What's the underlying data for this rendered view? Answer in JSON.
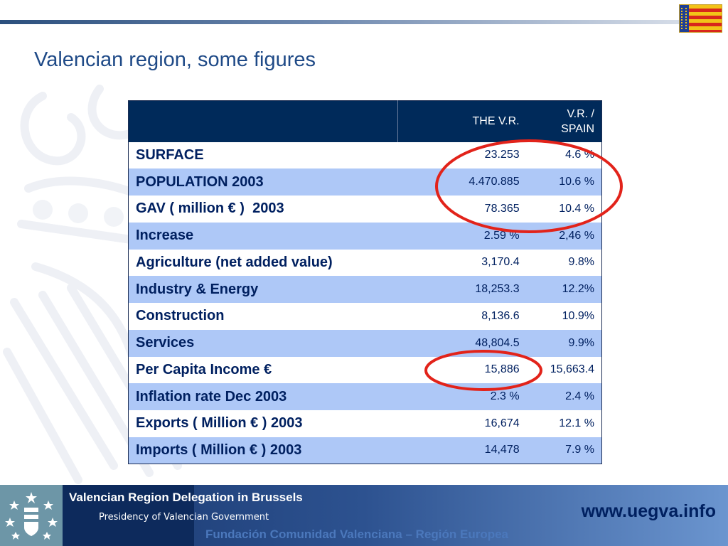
{
  "slide": {
    "title": "Valencian region, some figures"
  },
  "table": {
    "headers": {
      "label": "",
      "vr": "THE V.R.",
      "ratio_line1": "V.R. /",
      "ratio_line2": "SPAIN"
    },
    "rows": [
      {
        "label": "SURFACE",
        "vr": "23.253",
        "ratio": "4.6 %"
      },
      {
        "label": "POPULATION 2003",
        "vr": "4.470.885",
        "ratio": "10.6 %"
      },
      {
        "label": "GAV ( million € )  2003",
        "vr": "78.365",
        "ratio": "10.4 %"
      },
      {
        "label": "Increase",
        "vr": "2.59 %",
        "ratio": "2,46 %"
      },
      {
        "label": "Agriculture (net added value)",
        "vr": "3,170.4",
        "ratio": "9.8%"
      },
      {
        "label": "Industry & Energy",
        "vr": "18,253.3",
        "ratio": "12.2%"
      },
      {
        "label": "Construction",
        "vr": "8,136.6",
        "ratio": "10.9%"
      },
      {
        "label": "Services",
        "vr": "48,804.5",
        "ratio": "9.9%"
      },
      {
        "label": "Per Capita Income €",
        "vr": "15,886",
        "ratio": "15,663.4"
      },
      {
        "label": "Inflation rate Dec 2003",
        "vr": "2.3 %",
        "ratio": "2.4 %"
      },
      {
        "label": "Exports ( Million € ) 2003",
        "vr": "16,674",
        "ratio": "12.1 %"
      },
      {
        "label": "Imports ( Million € ) 2003",
        "vr": "14,478",
        "ratio": "7.9 %"
      }
    ]
  },
  "footer": {
    "heading": "Valencian Region Delegation in Brussels",
    "subheading": "Presidency of Valencian Government",
    "url": "www.uegva.info",
    "foundation": "Fundación Comunidad Valenciana – Región Europea"
  },
  "icons": {
    "flag": "valencian-flag-icon",
    "logo": "generalitat-emblem-icon",
    "watermark": "crest-watermark-icon"
  },
  "colors": {
    "title": "#1f4a87",
    "header_bg": "#002a5a",
    "row_alt": "#aec8f7",
    "text": "#002060",
    "highlight": "#e2231a"
  }
}
